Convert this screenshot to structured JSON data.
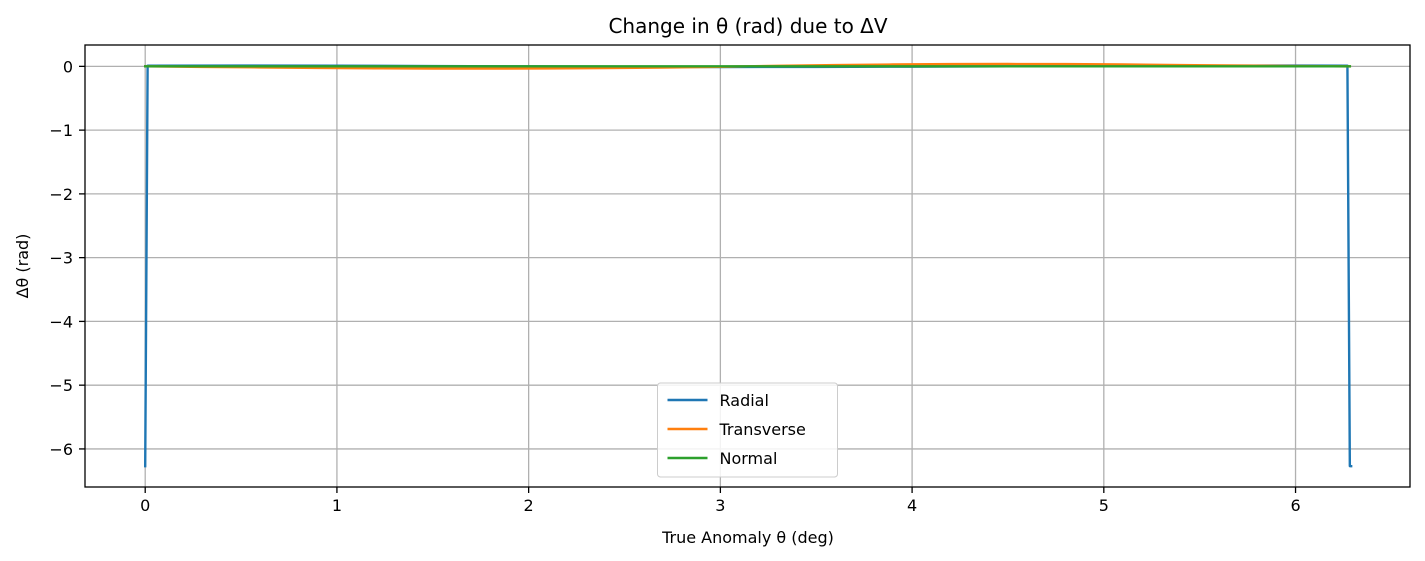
{
  "chart_data": {
    "type": "line",
    "title": "Change in θ (rad) due to ΔV",
    "xlabel": "True Anomaly θ (deg)",
    "ylabel": "Δθ (rad)",
    "xlim": [
      -0.314,
      6.597
    ],
    "ylim": [
      -6.597,
      0.335
    ],
    "xticks": [
      0,
      1,
      2,
      3,
      4,
      5,
      6
    ],
    "yticks": [
      0,
      -1,
      -2,
      -3,
      -4,
      -5,
      -6
    ],
    "xtick_labels": [
      "0",
      "1",
      "2",
      "3",
      "4",
      "5",
      "6"
    ],
    "ytick_labels": [
      "0",
      "−1",
      "−2",
      "−3",
      "−4",
      "−5",
      "−6"
    ],
    "grid": true,
    "legend_position": "lower center",
    "series": [
      {
        "name": "Radial",
        "color": "#1f77b4",
        "x": [
          0,
          0.0126,
          0.5,
          1.0,
          1.5,
          2.0,
          2.5,
          3.0,
          3.5,
          4.0,
          4.5,
          5.0,
          5.5,
          6.0,
          6.2706,
          6.2832,
          6.29
        ],
        "y": [
          -6.27,
          0.01,
          0.012,
          0.01,
          0.005,
          0.0,
          -0.005,
          -0.01,
          -0.008,
          -0.005,
          0.0,
          0.005,
          0.01,
          0.012,
          0.01,
          -6.27,
          -6.27
        ]
      },
      {
        "name": "Transverse",
        "color": "#ff7f0e",
        "x": [
          0,
          0.3,
          0.6,
          0.9,
          1.2,
          1.5,
          1.8,
          2.1,
          2.4,
          2.7,
          3.0,
          3.3,
          3.6,
          3.9,
          4.2,
          4.5,
          4.8,
          5.1,
          5.4,
          5.7,
          6.0,
          6.2832
        ],
        "y": [
          0.0,
          -0.008,
          -0.016,
          -0.024,
          -0.03,
          -0.034,
          -0.035,
          -0.033,
          -0.027,
          -0.018,
          -0.006,
          0.008,
          0.02,
          0.029,
          0.035,
          0.037,
          0.035,
          0.029,
          0.02,
          0.012,
          0.005,
          0.0
        ]
      },
      {
        "name": "Normal",
        "color": "#2ca02c",
        "x": [
          0,
          0.5,
          1.0,
          1.5,
          2.0,
          2.5,
          3.0,
          3.5,
          4.0,
          4.5,
          5.0,
          5.5,
          6.0,
          6.2832
        ],
        "y": [
          0.0,
          0.0,
          0.0,
          0.0,
          0.0,
          0.0,
          0.0,
          0.0,
          0.0,
          0.0,
          0.0,
          0.0,
          0.0,
          0.0
        ]
      }
    ]
  }
}
